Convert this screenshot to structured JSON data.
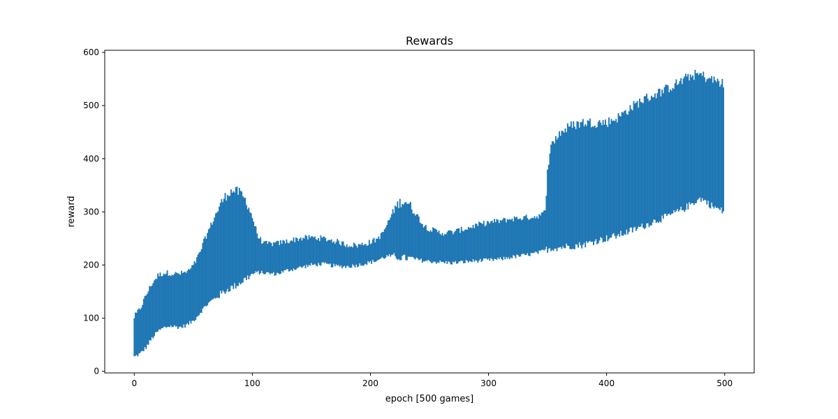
{
  "chart_data": {
    "type": "range",
    "title": "Rewards",
    "xlabel": "epoch [500 games]",
    "ylabel": "reward",
    "xlim": [
      -25,
      525
    ],
    "ylim": [
      -3,
      604
    ],
    "xticks": [
      0,
      100,
      200,
      300,
      400,
      500
    ],
    "yticks": [
      0,
      100,
      200,
      300,
      400,
      500,
      600
    ],
    "grid": false,
    "series": [
      {
        "color": "#1f77b4",
        "envelope": {
          "x": [
            0,
            5,
            10,
            15,
            20,
            25,
            30,
            35,
            40,
            45,
            50,
            55,
            60,
            65,
            70,
            75,
            80,
            85,
            90,
            95,
            100,
            105,
            110,
            120,
            130,
            140,
            150,
            160,
            170,
            180,
            190,
            200,
            205,
            210,
            215,
            220,
            225,
            230,
            235,
            240,
            245,
            250,
            260,
            270,
            280,
            290,
            300,
            310,
            320,
            330,
            340,
            345,
            348,
            350,
            352,
            355,
            360,
            370,
            380,
            390,
            400,
            410,
            420,
            430,
            440,
            450,
            460,
            465,
            470,
            475,
            480,
            485,
            490,
            495,
            499
          ],
          "low": [
            27,
            33,
            45,
            62,
            75,
            82,
            85,
            84,
            83,
            88,
            95,
            108,
            122,
            132,
            140,
            148,
            155,
            160,
            167,
            175,
            183,
            186,
            185,
            183,
            190,
            195,
            200,
            202,
            198,
            197,
            200,
            205,
            208,
            213,
            217,
            216,
            214,
            213,
            212,
            210,
            208,
            207,
            205,
            204,
            206,
            208,
            209,
            211,
            215,
            218,
            222,
            225,
            228,
            230,
            231,
            232,
            233,
            236,
            238,
            245,
            250,
            256,
            264,
            272,
            282,
            290,
            300,
            305,
            312,
            320,
            325,
            318,
            310,
            305,
            300
          ],
          "high": [
            102,
            118,
            143,
            165,
            180,
            185,
            185,
            183,
            184,
            187,
            198,
            220,
            250,
            275,
            300,
            322,
            337,
            340,
            335,
            320,
            290,
            253,
            240,
            240,
            245,
            250,
            252,
            250,
            245,
            238,
            237,
            243,
            248,
            258,
            280,
            305,
            318,
            320,
            308,
            292,
            275,
            268,
            260,
            262,
            268,
            275,
            280,
            283,
            287,
            289,
            291,
            295,
            300,
            380,
            415,
            432,
            448,
            462,
            468,
            468,
            468,
            478,
            495,
            510,
            520,
            530,
            542,
            548,
            555,
            558,
            558,
            552,
            548,
            545,
            540
          ]
        }
      }
    ]
  }
}
